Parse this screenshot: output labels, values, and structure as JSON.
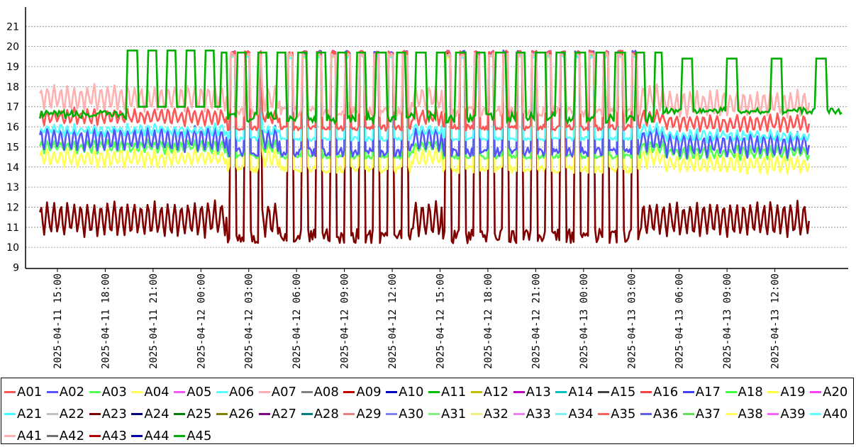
{
  "chart_data": {
    "type": "line",
    "ylim": [
      9,
      21.3
    ],
    "y_ticks": [
      "9",
      "10",
      "11",
      "12",
      "13",
      "14",
      "15",
      "16",
      "17",
      "18",
      "19",
      "20",
      "21"
    ],
    "x_ticks": [
      "2025-04-11  15:00",
      "2025-04-11  18:00",
      "2025-04-11  21:00",
      "2025-04-12  00:00",
      "2025-04-12  03:00",
      "2025-04-12  06:00",
      "2025-04-12  09:00",
      "2025-04-12  12:00",
      "2025-04-12  15:00",
      "2025-04-12  18:00",
      "2025-04-12  21:00",
      "2025-04-13  00:00",
      "2025-04-13  03:00",
      "2025-04-13  06:00",
      "2025-04-13  09:00",
      "2025-04-13  12:00"
    ],
    "x_start_hours": -2.0,
    "x_end_hours": 49.6,
    "grid": "horizontal-dotted",
    "legend_position": "bottom",
    "series": [
      {
        "name": "A01",
        "color": "#ff5555"
      },
      {
        "name": "A02",
        "color": "#5555ff"
      },
      {
        "name": "A03",
        "color": "#55ff55"
      },
      {
        "name": "A04",
        "color": "#ffff55"
      },
      {
        "name": "A05",
        "color": "#ff55ff"
      },
      {
        "name": "A06",
        "color": "#55ffff"
      },
      {
        "name": "A07",
        "color": "#ffafaf"
      },
      {
        "name": "A08",
        "color": "#808080"
      },
      {
        "name": "A09",
        "color": "#c00000"
      },
      {
        "name": "A10",
        "color": "#0000c0"
      },
      {
        "name": "A11",
        "color": "#00c000"
      },
      {
        "name": "A12",
        "color": "#c0c000"
      },
      {
        "name": "A13",
        "color": "#c000c0"
      },
      {
        "name": "A14",
        "color": "#00c0c0"
      },
      {
        "name": "A15",
        "color": "#404040"
      },
      {
        "name": "A16",
        "color": "#ff4040"
      },
      {
        "name": "A17",
        "color": "#4040ff"
      },
      {
        "name": "A18",
        "color": "#40ff40"
      },
      {
        "name": "A19",
        "color": "#ffff40"
      },
      {
        "name": "A20",
        "color": "#ff40ff"
      },
      {
        "name": "A21",
        "color": "#40ffff"
      },
      {
        "name": "A22",
        "color": "#c0c0c0"
      },
      {
        "name": "A23",
        "color": "#800000"
      },
      {
        "name": "A24",
        "color": "#000080"
      },
      {
        "name": "A25",
        "color": "#008000"
      },
      {
        "name": "A26",
        "color": "#808000"
      },
      {
        "name": "A27",
        "color": "#800080"
      },
      {
        "name": "A28",
        "color": "#008080"
      },
      {
        "name": "A29",
        "color": "#f08080"
      },
      {
        "name": "A30",
        "color": "#8080f0"
      },
      {
        "name": "A31",
        "color": "#80f080"
      },
      {
        "name": "A32",
        "color": "#f0f080"
      },
      {
        "name": "A33",
        "color": "#f080f0"
      },
      {
        "name": "A34",
        "color": "#80f0f0"
      },
      {
        "name": "A35",
        "color": "#ff6060"
      },
      {
        "name": "A36",
        "color": "#6060e0"
      },
      {
        "name": "A37",
        "color": "#60e060"
      },
      {
        "name": "A38",
        "color": "#ffff60"
      },
      {
        "name": "A39",
        "color": "#ff60ff"
      },
      {
        "name": "A40",
        "color": "#60ffff"
      },
      {
        "name": "A41",
        "color": "#ffb0b0"
      },
      {
        "name": "A42",
        "color": "#707070"
      },
      {
        "name": "A43",
        "color": "#b00000"
      },
      {
        "name": "A44",
        "color": "#0000b0"
      },
      {
        "name": "A45",
        "color": "#00b000"
      }
    ],
    "band_series": [
      {
        "name": "A23",
        "low": 10.5,
        "high": 12.3,
        "peak": 19.7
      },
      {
        "name": "A04",
        "low": 14.0,
        "high": 14.9,
        "peak": 19.6
      },
      {
        "name": "A03",
        "low": 14.7,
        "high": 15.3,
        "peak": 19.7
      },
      {
        "name": "A02",
        "low": 14.8,
        "high": 16.0,
        "peak": 19.8
      },
      {
        "name": "A06",
        "low": 15.6,
        "high": 16.1,
        "peak": 19.6
      },
      {
        "name": "A01",
        "low": 16.1,
        "high": 16.9,
        "peak": 19.8
      },
      {
        "name": "A41",
        "low": 16.8,
        "high": 18.1,
        "peak": 19.7
      }
    ],
    "A45_profile": {
      "low_day": 17.0,
      "high_day": 19.8,
      "night_low": 16.2,
      "night_high": 19.7
    }
  },
  "legend_rows": [
    [
      "A01",
      "A02",
      "A03",
      "A04",
      "A05",
      "A06",
      "A07",
      "A08",
      "A09",
      "A10",
      "A11",
      "A12",
      "A13",
      "A14",
      "A15",
      "A16",
      "A17",
      "A18",
      "A19",
      "A20"
    ],
    [
      "A21",
      "A22",
      "A23",
      "A24",
      "A25",
      "A26",
      "A27",
      "A28",
      "A29",
      "A30",
      "A31",
      "A32",
      "A33",
      "A34",
      "A35",
      "A36",
      "A37",
      "A38",
      "A39",
      "A40"
    ],
    [
      "A41",
      "A42",
      "A43",
      "A44",
      "A45"
    ]
  ]
}
